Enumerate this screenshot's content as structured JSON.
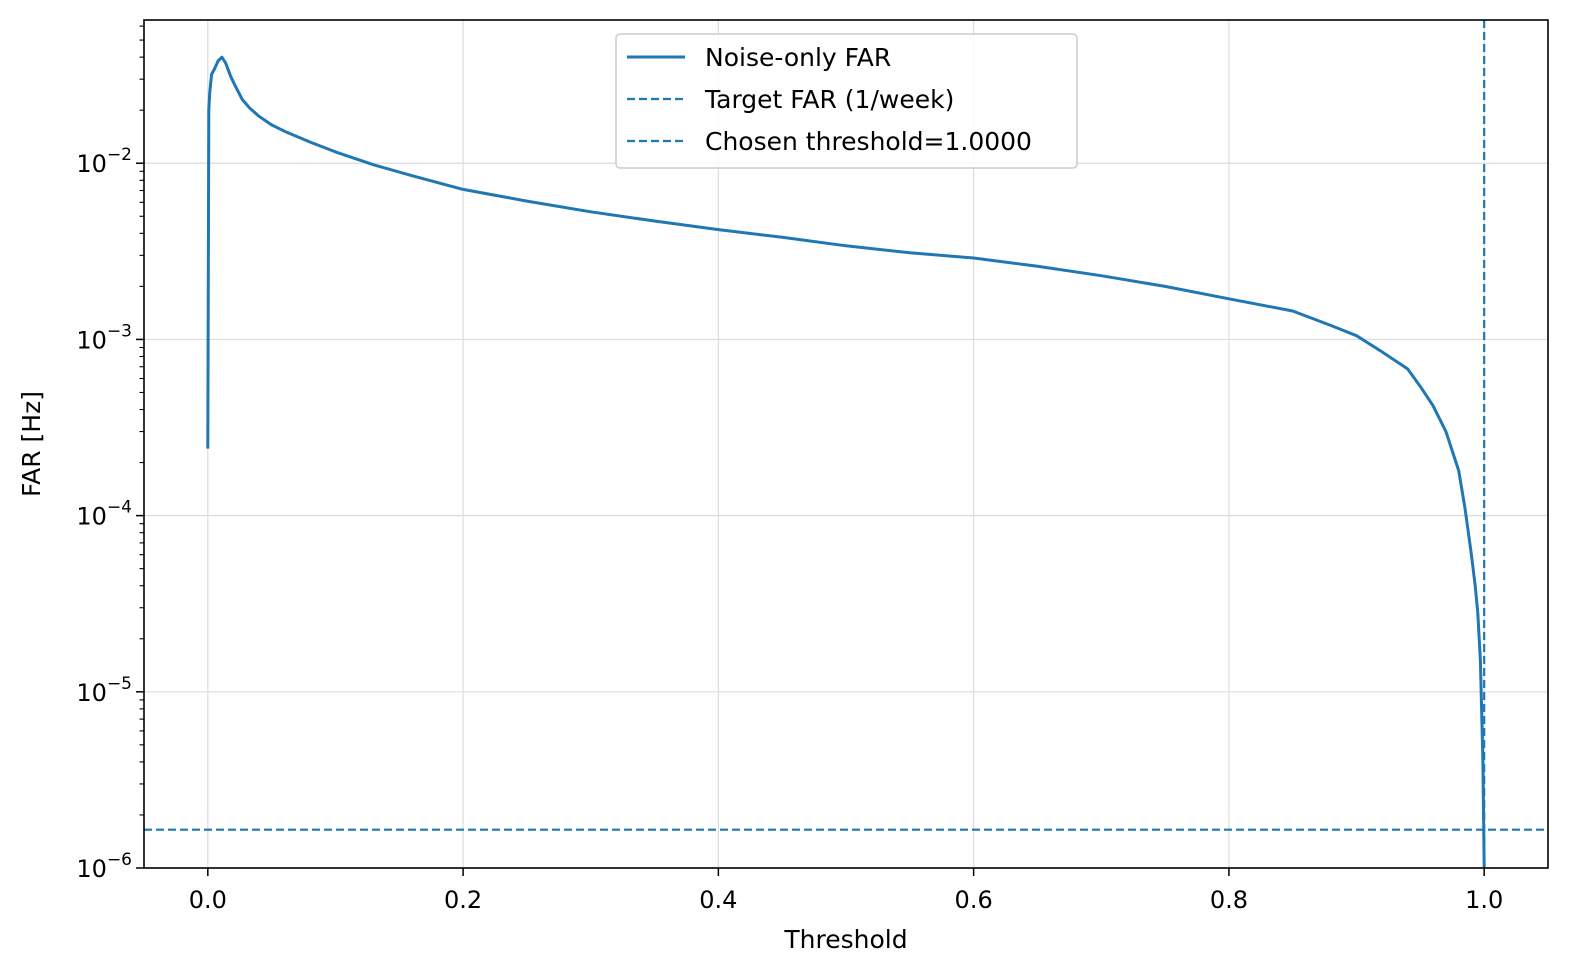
{
  "chart_data": {
    "type": "line",
    "title": "",
    "xlabel": "Threshold",
    "ylabel": "FAR [Hz]",
    "xlim": [
      -0.05,
      1.05
    ],
    "ylim": [
      1e-06,
      0.065
    ],
    "yscale": "log",
    "grid": true,
    "legend_position": "top-center",
    "x_ticks": [
      0.0,
      0.2,
      0.4,
      0.6,
      0.8,
      1.0
    ],
    "x_tick_labels": [
      "0.0",
      "0.2",
      "0.4",
      "0.6",
      "0.8",
      "1.0"
    ],
    "y_ticks": [
      {
        "value": 1e-06,
        "base": "10",
        "exp": "−6"
      },
      {
        "value": 1e-05,
        "base": "10",
        "exp": "−5"
      },
      {
        "value": 0.0001,
        "base": "10",
        "exp": "−4"
      },
      {
        "value": 0.001,
        "base": "10",
        "exp": "−3"
      },
      {
        "value": 0.01,
        "base": "10",
        "exp": "−2"
      }
    ],
    "series": [
      {
        "name": "Noise-only FAR",
        "style": "solid",
        "color": "#1f77b4",
        "x": [
          0.0,
          0.0008,
          0.0015,
          0.003,
          0.005,
          0.008,
          0.011,
          0.014,
          0.018,
          0.022,
          0.027,
          0.033,
          0.04,
          0.05,
          0.06,
          0.08,
          0.1,
          0.13,
          0.16,
          0.2,
          0.25,
          0.3,
          0.35,
          0.4,
          0.45,
          0.5,
          0.55,
          0.6,
          0.65,
          0.7,
          0.75,
          0.8,
          0.85,
          0.88,
          0.9,
          0.92,
          0.94,
          0.95,
          0.96,
          0.97,
          0.98,
          0.985,
          0.99,
          0.993,
          0.995,
          0.997,
          0.998,
          0.999,
          1.0
        ],
        "y": [
          0.00024,
          0.02,
          0.025,
          0.032,
          0.034,
          0.038,
          0.04,
          0.037,
          0.031,
          0.027,
          0.023,
          0.0205,
          0.0185,
          0.0165,
          0.0152,
          0.0132,
          0.0116,
          0.0098,
          0.0085,
          0.0071,
          0.0061,
          0.0053,
          0.0047,
          0.0042,
          0.0038,
          0.0034,
          0.0031,
          0.0029,
          0.0026,
          0.0023,
          0.002,
          0.0017,
          0.00145,
          0.0012,
          0.00105,
          0.00085,
          0.00068,
          0.00054,
          0.00042,
          0.0003,
          0.00018,
          0.00011,
          6e-05,
          4e-05,
          2.8e-05,
          1.5e-05,
          8e-06,
          4e-06,
          1e-06
        ]
      },
      {
        "name": "Target FAR (1/week)",
        "style": "dashed",
        "color": "#1f77b4",
        "orientation": "horizontal",
        "value": 1.65e-06
      },
      {
        "name": "Chosen threshold=1.0000",
        "style": "dashed",
        "color": "#1f77b4",
        "orientation": "vertical",
        "value": 1.0
      }
    ]
  }
}
